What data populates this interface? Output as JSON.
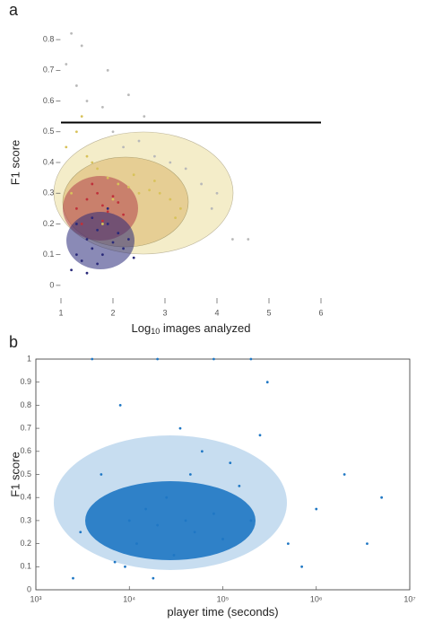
{
  "chart_data": [
    {
      "type": "scatter",
      "panel_label": "a",
      "ylabel": "F1 score",
      "xlabel": [
        "Log",
        "10",
        " images analyzed"
      ],
      "xlim": [
        0.8,
        6.2
      ],
      "ylim": [
        -0.05,
        0.85
      ],
      "xticks": [
        1,
        2,
        3,
        4,
        5,
        6
      ],
      "yticks": [
        0,
        0.1,
        0.2,
        0.3,
        0.4,
        0.5,
        0.6,
        0.7,
        0.8
      ],
      "reference_line": {
        "y": 0.53,
        "x": [
          1,
          6
        ],
        "color": "#000000"
      },
      "series": [
        {
          "color": "#b9b9b9",
          "x": [
            1.1,
            1.3,
            1.5,
            1.8,
            2.0,
            2.2,
            2.5,
            2.8,
            3.1,
            3.4,
            3.7,
            4.0,
            4.3,
            1.4,
            1.9,
            2.6,
            3.9,
            4.6,
            1.2,
            2.3
          ],
          "y": [
            0.72,
            0.65,
            0.6,
            0.58,
            0.5,
            0.45,
            0.47,
            0.42,
            0.4,
            0.38,
            0.33,
            0.3,
            0.15,
            0.78,
            0.7,
            0.55,
            0.25,
            0.15,
            0.82,
            0.62
          ]
        },
        {
          "color": "#d8c25a",
          "x": [
            1.1,
            1.3,
            1.5,
            1.7,
            1.9,
            2.1,
            2.3,
            2.5,
            2.7,
            2.9,
            3.1,
            3.3,
            1.2,
            1.6,
            2.0,
            2.4,
            2.8,
            3.2,
            1.4,
            1.8
          ],
          "y": [
            0.45,
            0.5,
            0.42,
            0.38,
            0.35,
            0.33,
            0.32,
            0.3,
            0.31,
            0.3,
            0.28,
            0.25,
            0.3,
            0.4,
            0.28,
            0.36,
            0.34,
            0.22,
            0.55,
            0.2
          ]
        },
        {
          "color": "#c0303a",
          "x": [
            1.3,
            1.5,
            1.6,
            1.7,
            1.8,
            1.9,
            2.0,
            2.1,
            1.4,
            1.6,
            1.8,
            2.2
          ],
          "y": [
            0.25,
            0.28,
            0.22,
            0.3,
            0.26,
            0.24,
            0.29,
            0.27,
            0.2,
            0.33,
            0.21,
            0.23
          ]
        },
        {
          "color": "#2a2a7a",
          "x": [
            1.2,
            1.3,
            1.4,
            1.5,
            1.6,
            1.7,
            1.8,
            1.9,
            2.0,
            2.1,
            2.2,
            2.4,
            1.5,
            1.7,
            1.9,
            1.3,
            1.6,
            2.3
          ],
          "y": [
            0.05,
            0.1,
            0.08,
            0.15,
            0.12,
            0.18,
            0.1,
            0.2,
            0.14,
            0.17,
            0.12,
            0.09,
            0.04,
            0.07,
            0.25,
            0.2,
            0.22,
            0.15
          ]
        }
      ]
    },
    {
      "type": "scatter",
      "panel_label": "b",
      "ylabel": "F1 score",
      "xlabel": [
        "player time (seconds)"
      ],
      "xscale": "log",
      "xlim": [
        1000,
        10000000
      ],
      "ylim": [
        0,
        1
      ],
      "xticks": [
        {
          "value": 1000,
          "label": "10³"
        },
        {
          "value": 10000,
          "label": "10⁴"
        },
        {
          "value": 100000,
          "label": "10⁵"
        },
        {
          "value": 1000000,
          "label": "10⁶"
        },
        {
          "value": 10000000,
          "label": "10⁷"
        }
      ],
      "yticks": [
        0,
        0.1,
        0.2,
        0.3,
        0.4,
        0.5,
        0.6,
        0.7,
        0.8,
        0.9,
        1
      ],
      "series": [
        {
          "color": "#1f77c4",
          "x": [
            3000,
            5000,
            8000,
            10000,
            12000,
            15000,
            20000,
            25000,
            30000,
            40000,
            50000,
            60000,
            80000,
            100000,
            150000,
            200000,
            300000,
            500000,
            1000000,
            2000000,
            5000000,
            7000,
            18000,
            35000,
            250000,
            4000,
            20000,
            80000,
            200000,
            9000,
            45000,
            120000,
            700000,
            2500,
            3500000
          ],
          "y": [
            0.25,
            0.5,
            0.8,
            0.3,
            0.2,
            0.35,
            0.28,
            0.4,
            0.15,
            0.3,
            0.25,
            0.6,
            0.33,
            0.22,
            0.45,
            0.3,
            0.9,
            0.2,
            0.35,
            0.5,
            0.4,
            0.12,
            0.05,
            0.7,
            0.67,
            1,
            1,
            1,
            1,
            0.1,
            0.5,
            0.55,
            0.1,
            0.05,
            0.2
          ]
        }
      ]
    }
  ]
}
